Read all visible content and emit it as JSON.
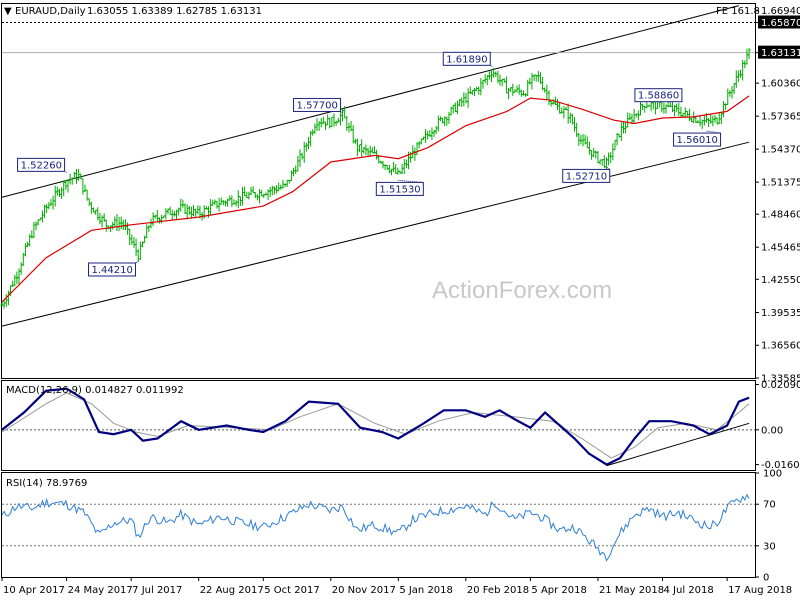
{
  "header": {
    "symbol": "EURAUD,Daily",
    "ohlc": "1.63055 1.63389 1.62785 1.63131",
    "fib_label": "FE 161.8"
  },
  "watermark": "ActionForex.com",
  "colors": {
    "bar": "#00aa00",
    "ma": "#dd0000",
    "macd": "#000080",
    "signal": "#999999",
    "channel": "#000000",
    "box": "#1a237e",
    "price_tag_bg": "#000000"
  },
  "chart_data": [
    {
      "type": "ohlc",
      "name": "EURAUD Daily price",
      "ylim": [
        1.33585,
        1.6755
      ],
      "y_ticks": [
        "1.66940",
        "1.65870",
        "1.63131",
        "1.60360",
        "1.57365",
        "1.54370",
        "1.51375",
        "1.48460",
        "1.45465",
        "1.42550",
        "1.39535",
        "1.36560",
        "1.33585"
      ],
      "highlighted_levels": [
        {
          "label": "1.65870",
          "value": 1.6587,
          "style": "dotted"
        },
        {
          "label": "1.63131",
          "value": 1.63131,
          "style": "current"
        }
      ],
      "x_tick_labels": [
        "10 Apr 2017",
        "24 May 2017",
        "7 Jul 2017",
        "22 Aug 2017",
        "5 Oct 2017",
        "20 Nov 2017",
        "5 Jan 2018",
        "20 Feb 2018",
        "5 Apr 2018",
        "21 May 2018",
        "4 Jul 2018",
        "17 Aug 2018"
      ],
      "price_path": [
        {
          "date": "2017-04-10",
          "value": 1.402
        },
        {
          "date": "2017-04-20",
          "value": 1.43
        },
        {
          "date": "2017-05-01",
          "value": 1.47
        },
        {
          "date": "2017-05-10",
          "value": 1.49
        },
        {
          "date": "2017-05-24",
          "value": 1.515
        },
        {
          "date": "2017-06-01",
          "value": 1.52
        },
        {
          "date": "2017-06-08",
          "value": 1.495
        },
        {
          "date": "2017-06-20",
          "value": 1.475
        },
        {
          "date": "2017-07-01",
          "value": 1.477
        },
        {
          "date": "2017-07-07",
          "value": 1.46
        },
        {
          "date": "2017-07-12",
          "value": 1.447
        },
        {
          "date": "2017-07-20",
          "value": 1.478
        },
        {
          "date": "2017-07-30",
          "value": 1.485
        },
        {
          "date": "2017-08-10",
          "value": 1.49
        },
        {
          "date": "2017-08-22",
          "value": 1.485
        },
        {
          "date": "2017-09-05",
          "value": 1.495
        },
        {
          "date": "2017-09-20",
          "value": 1.5
        },
        {
          "date": "2017-10-05",
          "value": 1.505
        },
        {
          "date": "2017-10-20",
          "value": 1.51
        },
        {
          "date": "2017-11-01",
          "value": 1.54
        },
        {
          "date": "2017-11-10",
          "value": 1.57
        },
        {
          "date": "2017-11-20",
          "value": 1.568
        },
        {
          "date": "2017-11-28",
          "value": 1.575
        },
        {
          "date": "2017-12-08",
          "value": 1.545
        },
        {
          "date": "2017-12-20",
          "value": 1.538
        },
        {
          "date": "2018-01-05",
          "value": 1.52
        },
        {
          "date": "2018-01-15",
          "value": 1.54
        },
        {
          "date": "2018-01-30",
          "value": 1.565
        },
        {
          "date": "2018-02-10",
          "value": 1.578
        },
        {
          "date": "2018-02-20",
          "value": 1.59
        },
        {
          "date": "2018-03-01",
          "value": 1.6
        },
        {
          "date": "2018-03-10",
          "value": 1.615
        },
        {
          "date": "2018-03-20",
          "value": 1.598
        },
        {
          "date": "2018-04-01",
          "value": 1.595
        },
        {
          "date": "2018-04-05",
          "value": 1.605
        },
        {
          "date": "2018-04-10",
          "value": 1.61
        },
        {
          "date": "2018-04-20",
          "value": 1.585
        },
        {
          "date": "2018-05-01",
          "value": 1.575
        },
        {
          "date": "2018-05-10",
          "value": 1.55
        },
        {
          "date": "2018-05-21",
          "value": 1.535
        },
        {
          "date": "2018-05-27",
          "value": 1.53
        },
        {
          "date": "2018-06-05",
          "value": 1.56
        },
        {
          "date": "2018-06-15",
          "value": 1.575
        },
        {
          "date": "2018-06-22",
          "value": 1.585
        },
        {
          "date": "2018-07-04",
          "value": 1.583
        },
        {
          "date": "2018-07-15",
          "value": 1.578
        },
        {
          "date": "2018-07-25",
          "value": 1.572
        },
        {
          "date": "2018-08-03",
          "value": 1.568
        },
        {
          "date": "2018-08-10",
          "value": 1.57
        },
        {
          "date": "2018-08-17",
          "value": 1.59
        },
        {
          "date": "2018-08-25",
          "value": 1.612
        },
        {
          "date": "2018-09-01",
          "value": 1.63131
        }
      ],
      "moving_average": [
        {
          "date": "2017-04-10",
          "value": 1.405
        },
        {
          "date": "2017-05-10",
          "value": 1.445
        },
        {
          "date": "2017-06-10",
          "value": 1.47
        },
        {
          "date": "2017-07-07",
          "value": 1.475
        },
        {
          "date": "2017-08-22",
          "value": 1.482
        },
        {
          "date": "2017-10-05",
          "value": 1.492
        },
        {
          "date": "2017-10-25",
          "value": 1.505
        },
        {
          "date": "2017-11-20",
          "value": 1.532
        },
        {
          "date": "2017-12-20",
          "value": 1.538
        },
        {
          "date": "2018-01-05",
          "value": 1.535
        },
        {
          "date": "2018-01-25",
          "value": 1.545
        },
        {
          "date": "2018-02-20",
          "value": 1.565
        },
        {
          "date": "2018-03-20",
          "value": 1.578
        },
        {
          "date": "2018-04-05",
          "value": 1.59
        },
        {
          "date": "2018-04-20",
          "value": 1.588
        },
        {
          "date": "2018-05-10",
          "value": 1.58
        },
        {
          "date": "2018-06-01",
          "value": 1.57
        },
        {
          "date": "2018-06-15",
          "value": 1.567
        },
        {
          "date": "2018-07-04",
          "value": 1.572
        },
        {
          "date": "2018-07-25",
          "value": 1.573
        },
        {
          "date": "2018-08-17",
          "value": 1.578
        },
        {
          "date": "2018-09-01",
          "value": 1.592
        }
      ],
      "channel_lines": [
        {
          "from": {
            "date": "2017-04-10",
            "value": 1.5
          },
          "to": {
            "date": "2018-08-25",
            "value": 1.674
          }
        },
        {
          "from": {
            "date": "2017-04-10",
            "value": 1.383
          },
          "to": {
            "date": "2018-09-01",
            "value": 1.55
          }
        }
      ],
      "annotations": [
        {
          "label": "1.52260",
          "date": "2017-05-24",
          "value": 1.5226
        },
        {
          "label": "1.44210",
          "date": "2017-07-12",
          "value": 1.4421
        },
        {
          "label": "1.57700",
          "date": "2017-11-28",
          "value": 1.577
        },
        {
          "label": "1.51530",
          "date": "2018-01-05",
          "value": 1.5153
        },
        {
          "label": "1.61890",
          "date": "2018-03-10",
          "value": 1.6189
        },
        {
          "label": "1.52710",
          "date": "2018-05-27",
          "value": 1.5271
        },
        {
          "label": "1.58860",
          "date": "2018-06-22",
          "value": 1.5886
        },
        {
          "label": "1.56010",
          "date": "2018-08-03",
          "value": 1.5601
        }
      ]
    },
    {
      "type": "line",
      "name": "MACD",
      "label": "MACD(12,26,9) 0.014827 0.011992",
      "ylim": [
        -0.0185,
        0.0225
      ],
      "y_ticks": [
        "0.020904",
        "0.00",
        "-0.016023"
      ],
      "macd": [
        {
          "date": "2017-04-10",
          "value": 0.0
        },
        {
          "date": "2017-04-25",
          "value": 0.008
        },
        {
          "date": "2017-05-10",
          "value": 0.018
        },
        {
          "date": "2017-05-24",
          "value": 0.019
        },
        {
          "date": "2017-06-05",
          "value": 0.014
        },
        {
          "date": "2017-06-15",
          "value": -0.001
        },
        {
          "date": "2017-06-25",
          "value": -0.002
        },
        {
          "date": "2017-07-07",
          "value": 0.0
        },
        {
          "date": "2017-07-15",
          "value": -0.005
        },
        {
          "date": "2017-07-25",
          "value": -0.004
        },
        {
          "date": "2017-08-10",
          "value": 0.004
        },
        {
          "date": "2017-08-22",
          "value": 0.0
        },
        {
          "date": "2017-09-10",
          "value": 0.002
        },
        {
          "date": "2017-09-25",
          "value": 0.0
        },
        {
          "date": "2017-10-05",
          "value": -0.001
        },
        {
          "date": "2017-10-20",
          "value": 0.004
        },
        {
          "date": "2017-11-05",
          "value": 0.013
        },
        {
          "date": "2017-11-25",
          "value": 0.012
        },
        {
          "date": "2017-12-10",
          "value": 0.001
        },
        {
          "date": "2017-12-25",
          "value": -0.001
        },
        {
          "date": "2018-01-05",
          "value": -0.004
        },
        {
          "date": "2018-01-20",
          "value": 0.002
        },
        {
          "date": "2018-02-05",
          "value": 0.009
        },
        {
          "date": "2018-02-20",
          "value": 0.009
        },
        {
          "date": "2018-03-05",
          "value": 0.006
        },
        {
          "date": "2018-03-15",
          "value": 0.009
        },
        {
          "date": "2018-03-25",
          "value": 0.005
        },
        {
          "date": "2018-04-05",
          "value": 0.001
        },
        {
          "date": "2018-04-15",
          "value": 0.008
        },
        {
          "date": "2018-04-25",
          "value": 0.002
        },
        {
          "date": "2018-05-05",
          "value": -0.004
        },
        {
          "date": "2018-05-15",
          "value": -0.011
        },
        {
          "date": "2018-05-27",
          "value": -0.016
        },
        {
          "date": "2018-06-05",
          "value": -0.013
        },
        {
          "date": "2018-06-15",
          "value": -0.004
        },
        {
          "date": "2018-06-25",
          "value": 0.004
        },
        {
          "date": "2018-07-10",
          "value": 0.004
        },
        {
          "date": "2018-07-25",
          "value": 0.002
        },
        {
          "date": "2018-08-05",
          "value": -0.002
        },
        {
          "date": "2018-08-17",
          "value": 0.002
        },
        {
          "date": "2018-08-25",
          "value": 0.013
        },
        {
          "date": "2018-09-01",
          "value": 0.0148
        }
      ],
      "signal": [
        {
          "date": "2017-04-10",
          "value": -0.001
        },
        {
          "date": "2017-05-10",
          "value": 0.012
        },
        {
          "date": "2017-05-24",
          "value": 0.017
        },
        {
          "date": "2017-06-10",
          "value": 0.012
        },
        {
          "date": "2017-06-25",
          "value": 0.003
        },
        {
          "date": "2017-07-10",
          "value": -0.001
        },
        {
          "date": "2017-07-25",
          "value": -0.003
        },
        {
          "date": "2017-08-15",
          "value": 0.002
        },
        {
          "date": "2017-09-15",
          "value": 0.001
        },
        {
          "date": "2017-10-10",
          "value": 0.0
        },
        {
          "date": "2017-10-30",
          "value": 0.006
        },
        {
          "date": "2017-11-25",
          "value": 0.012
        },
        {
          "date": "2017-12-20",
          "value": 0.003
        },
        {
          "date": "2018-01-10",
          "value": -0.002
        },
        {
          "date": "2018-02-01",
          "value": 0.004
        },
        {
          "date": "2018-02-25",
          "value": 0.008
        },
        {
          "date": "2018-03-25",
          "value": 0.006
        },
        {
          "date": "2018-04-20",
          "value": 0.004
        },
        {
          "date": "2018-05-10",
          "value": -0.004
        },
        {
          "date": "2018-05-30",
          "value": -0.013
        },
        {
          "date": "2018-06-15",
          "value": -0.008
        },
        {
          "date": "2018-07-01",
          "value": 0.001
        },
        {
          "date": "2018-07-20",
          "value": 0.003
        },
        {
          "date": "2018-08-10",
          "value": 0.0
        },
        {
          "date": "2018-08-25",
          "value": 0.008
        },
        {
          "date": "2018-09-01",
          "value": 0.012
        }
      ],
      "trendline": {
        "from": {
          "date": "2018-05-27",
          "value": -0.0165
        },
        "to": {
          "date": "2018-09-01",
          "value": 0.003
        }
      }
    },
    {
      "type": "line",
      "name": "RSI",
      "label": "RSI(14) 78.9769",
      "ylim": [
        0,
        100
      ],
      "y_ticks": [
        "100",
        "70",
        "30",
        "0"
      ],
      "levels": [
        70,
        30
      ],
      "values": [
        {
          "date": "2017-04-10",
          "value": 58
        },
        {
          "date": "2017-04-20",
          "value": 68
        },
        {
          "date": "2017-05-01",
          "value": 66
        },
        {
          "date": "2017-05-10",
          "value": 72
        },
        {
          "date": "2017-05-24",
          "value": 70
        },
        {
          "date": "2017-06-05",
          "value": 62
        },
        {
          "date": "2017-06-15",
          "value": 40
        },
        {
          "date": "2017-06-25",
          "value": 52
        },
        {
          "date": "2017-07-07",
          "value": 55
        },
        {
          "date": "2017-07-12",
          "value": 38
        },
        {
          "date": "2017-07-20",
          "value": 58
        },
        {
          "date": "2017-08-01",
          "value": 52
        },
        {
          "date": "2017-08-10",
          "value": 60
        },
        {
          "date": "2017-08-22",
          "value": 50
        },
        {
          "date": "2017-09-05",
          "value": 58
        },
        {
          "date": "2017-09-20",
          "value": 52
        },
        {
          "date": "2017-10-05",
          "value": 48
        },
        {
          "date": "2017-10-20",
          "value": 58
        },
        {
          "date": "2017-11-05",
          "value": 70
        },
        {
          "date": "2017-11-20",
          "value": 64
        },
        {
          "date": "2017-11-28",
          "value": 68
        },
        {
          "date": "2017-12-08",
          "value": 45
        },
        {
          "date": "2017-12-20",
          "value": 50
        },
        {
          "date": "2018-01-05",
          "value": 42
        },
        {
          "date": "2018-01-15",
          "value": 55
        },
        {
          "date": "2018-01-30",
          "value": 62
        },
        {
          "date": "2018-02-20",
          "value": 68
        },
        {
          "date": "2018-03-05",
          "value": 60
        },
        {
          "date": "2018-03-12",
          "value": 72
        },
        {
          "date": "2018-03-25",
          "value": 55
        },
        {
          "date": "2018-04-05",
          "value": 62
        },
        {
          "date": "2018-04-12",
          "value": 58
        },
        {
          "date": "2018-04-25",
          "value": 45
        },
        {
          "date": "2018-05-05",
          "value": 48
        },
        {
          "date": "2018-05-15",
          "value": 35
        },
        {
          "date": "2018-05-27",
          "value": 20
        },
        {
          "date": "2018-06-05",
          "value": 42
        },
        {
          "date": "2018-06-15",
          "value": 60
        },
        {
          "date": "2018-06-25",
          "value": 66
        },
        {
          "date": "2018-07-04",
          "value": 58
        },
        {
          "date": "2018-07-15",
          "value": 62
        },
        {
          "date": "2018-07-25",
          "value": 55
        },
        {
          "date": "2018-08-05",
          "value": 48
        },
        {
          "date": "2018-08-10",
          "value": 52
        },
        {
          "date": "2018-08-17",
          "value": 66
        },
        {
          "date": "2018-08-25",
          "value": 75
        },
        {
          "date": "2018-09-01",
          "value": 79
        }
      ]
    }
  ]
}
